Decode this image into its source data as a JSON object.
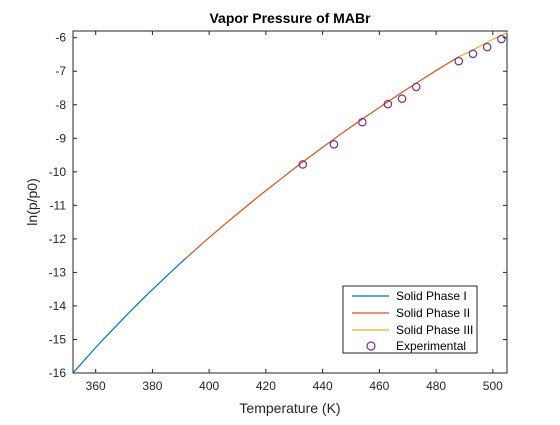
{
  "chart_data": {
    "type": "line",
    "title": "Vapor Pressure of MABr",
    "xlabel": "Temperature (K)",
    "ylabel": "ln(p/p0)",
    "xlim": [
      352,
      505
    ],
    "ylim": [
      -16,
      -5.8
    ],
    "xticks": [
      360,
      380,
      400,
      420,
      440,
      460,
      480,
      500
    ],
    "yticks": [
      -16,
      -15,
      -14,
      -13,
      -12,
      -11,
      -10,
      -9,
      -8,
      -7,
      -6
    ],
    "grid": false,
    "legend_position": "bottom-right",
    "series": [
      {
        "name": "Solid Phase I",
        "kind": "line",
        "color": "#0072BD",
        "x": [
          352,
          356,
          360,
          364,
          368,
          372,
          376,
          380,
          384,
          388,
          392
        ],
        "y": [
          -16.0,
          -15.62,
          -15.24,
          -14.88,
          -14.53,
          -14.18,
          -13.84,
          -13.51,
          -13.19,
          -12.87,
          -12.56
        ]
      },
      {
        "name": "Solid Phase II",
        "kind": "line",
        "color": "#D95319",
        "x": [
          392,
          396,
          400,
          405,
          410,
          415,
          420,
          425,
          430,
          435,
          440,
          445,
          450,
          455,
          460,
          465,
          470,
          475,
          480,
          485,
          488
        ],
        "y": [
          -12.56,
          -12.26,
          -11.96,
          -11.6,
          -11.25,
          -10.9,
          -10.56,
          -10.23,
          -9.9,
          -9.58,
          -9.27,
          -8.96,
          -8.66,
          -8.37,
          -8.08,
          -7.8,
          -7.52,
          -7.25,
          -6.98,
          -6.72,
          -6.57
        ]
      },
      {
        "name": "Solid Phase III",
        "kind": "line",
        "color": "#EDB120",
        "x": [
          488,
          492,
          496,
          500,
          505
        ],
        "y": [
          -6.57,
          -6.41,
          -6.23,
          -6.05,
          -5.85
        ]
      },
      {
        "name": "Experimental",
        "kind": "scatter",
        "color": "#7E2F8E",
        "x": [
          433,
          444,
          454,
          463,
          468,
          473,
          488,
          493,
          498,
          503
        ],
        "y": [
          -9.78,
          -9.18,
          -8.52,
          -7.98,
          -7.82,
          -7.47,
          -6.7,
          -6.48,
          -6.28,
          -6.04
        ]
      }
    ]
  }
}
